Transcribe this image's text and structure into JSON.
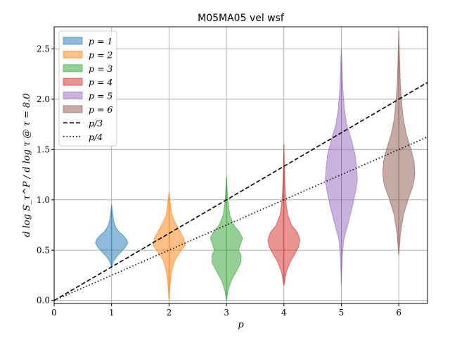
{
  "chart_data": {
    "type": "violin",
    "title": "M05MA05 vel wsf",
    "xlabel": "p",
    "ylabel": "d log S_τ^P / d log τ @ τ = 8.0",
    "xlim": [
      0,
      6.5
    ],
    "ylim": [
      -0.03,
      2.72
    ],
    "x_ticks": [
      "0",
      "1",
      "2",
      "3",
      "4",
      "5",
      "6"
    ],
    "y_ticks": [
      "0.0",
      "0.5",
      "1.0",
      "1.5",
      "2.0",
      "2.5"
    ],
    "grid": true,
    "legend_position": "upper left",
    "violins": [
      {
        "name": "p = 1",
        "x": 1,
        "color": "#1f77b4",
        "range": [
          0.33,
          0.95
        ],
        "profile": [
          [
            0.33,
            0.0
          ],
          [
            0.38,
            0.02
          ],
          [
            0.43,
            0.06
          ],
          [
            0.48,
            0.12
          ],
          [
            0.53,
            0.18
          ],
          [
            0.57,
            0.21
          ],
          [
            0.6,
            0.2
          ],
          [
            0.64,
            0.16
          ],
          [
            0.68,
            0.1
          ],
          [
            0.72,
            0.06
          ],
          [
            0.78,
            0.03
          ],
          [
            0.85,
            0.015
          ],
          [
            0.95,
            0.0
          ]
        ]
      },
      {
        "name": "p = 2",
        "x": 2,
        "color": "#ff7f0e",
        "range": [
          0.0,
          1.07
        ],
        "profile": [
          [
            0.0,
            0.0
          ],
          [
            0.1,
            0.01
          ],
          [
            0.2,
            0.02
          ],
          [
            0.3,
            0.04
          ],
          [
            0.4,
            0.08
          ],
          [
            0.48,
            0.15
          ],
          [
            0.55,
            0.22
          ],
          [
            0.62,
            0.2
          ],
          [
            0.7,
            0.14
          ],
          [
            0.78,
            0.08
          ],
          [
            0.85,
            0.04
          ],
          [
            0.95,
            0.02
          ],
          [
            1.07,
            0.0
          ]
        ]
      },
      {
        "name": "p = 3",
        "x": 3,
        "color": "#2ca02c",
        "range": [
          0.0,
          1.23
        ],
        "profile": [
          [
            0.0,
            0.0
          ],
          [
            0.1,
            0.02
          ],
          [
            0.2,
            0.06
          ],
          [
            0.3,
            0.13
          ],
          [
            0.38,
            0.18
          ],
          [
            0.45,
            0.18
          ],
          [
            0.5,
            0.15
          ],
          [
            0.55,
            0.17
          ],
          [
            0.62,
            0.2
          ],
          [
            0.68,
            0.16
          ],
          [
            0.75,
            0.09
          ],
          [
            0.85,
            0.04
          ],
          [
            1.0,
            0.015
          ],
          [
            1.23,
            0.0
          ]
        ]
      },
      {
        "name": "p = 4",
        "x": 4,
        "color": "#d62728",
        "range": [
          0.15,
          1.55
        ],
        "profile": [
          [
            0.15,
            0.0
          ],
          [
            0.28,
            0.03
          ],
          [
            0.38,
            0.08
          ],
          [
            0.46,
            0.14
          ],
          [
            0.53,
            0.19
          ],
          [
            0.6,
            0.21
          ],
          [
            0.67,
            0.18
          ],
          [
            0.75,
            0.1
          ],
          [
            0.85,
            0.05
          ],
          [
            0.95,
            0.03
          ],
          [
            1.05,
            0.02
          ],
          [
            1.2,
            0.01
          ],
          [
            1.55,
            0.0
          ]
        ]
      },
      {
        "name": "p = 5",
        "x": 5,
        "color": "#9467bd",
        "range": [
          0.15,
          2.5
        ],
        "profile": [
          [
            0.15,
            0.0
          ],
          [
            0.4,
            0.01
          ],
          [
            0.6,
            0.03
          ],
          [
            0.8,
            0.1
          ],
          [
            0.95,
            0.15
          ],
          [
            1.1,
            0.19
          ],
          [
            1.2,
            0.21
          ],
          [
            1.3,
            0.2
          ],
          [
            1.45,
            0.18
          ],
          [
            1.6,
            0.13
          ],
          [
            1.75,
            0.07
          ],
          [
            1.9,
            0.04
          ],
          [
            2.1,
            0.02
          ],
          [
            2.3,
            0.01
          ],
          [
            2.5,
            0.0
          ]
        ]
      },
      {
        "name": "p = 6",
        "x": 6,
        "color": "#8c564b",
        "range": [
          0.45,
          2.68
        ],
        "profile": [
          [
            0.45,
            0.0
          ],
          [
            0.65,
            0.02
          ],
          [
            0.85,
            0.06
          ],
          [
            1.0,
            0.12
          ],
          [
            1.15,
            0.19
          ],
          [
            1.25,
            0.21
          ],
          [
            1.38,
            0.2
          ],
          [
            1.5,
            0.16
          ],
          [
            1.65,
            0.1
          ],
          [
            1.8,
            0.06
          ],
          [
            1.95,
            0.04
          ],
          [
            2.15,
            0.02
          ],
          [
            2.4,
            0.01
          ],
          [
            2.68,
            0.0
          ]
        ]
      }
    ],
    "reference_lines": [
      {
        "name": "p/3",
        "style": "dashed",
        "slope": 0.3333,
        "x_range": [
          0,
          6.5
        ]
      },
      {
        "name": "p/4",
        "style": "dotted",
        "slope": 0.25,
        "x_range": [
          0,
          6.5
        ]
      }
    ]
  }
}
